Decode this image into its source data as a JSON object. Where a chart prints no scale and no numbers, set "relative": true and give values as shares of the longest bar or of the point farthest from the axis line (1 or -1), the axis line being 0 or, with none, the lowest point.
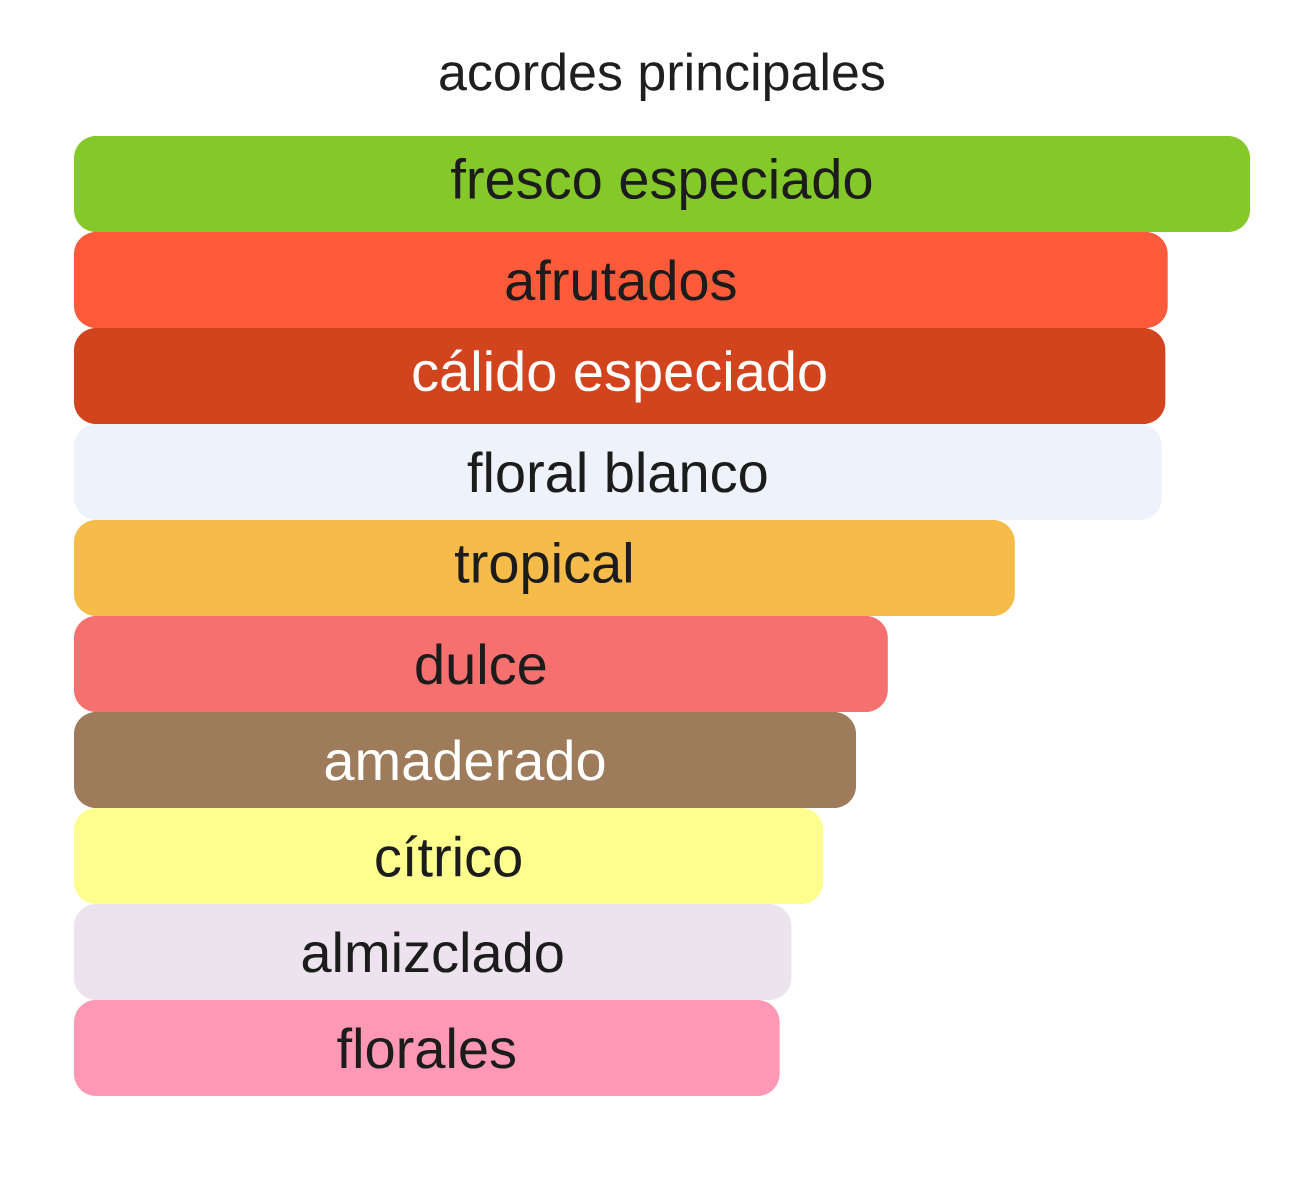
{
  "chart_data": {
    "type": "bar",
    "orientation": "horizontal",
    "relative": true,
    "title": "acordes principales",
    "categories": [
      "fresco especiado",
      "afrutados",
      "cálido especiado",
      "floral blanco",
      "tropical",
      "dulce",
      "amaderado",
      "cítrico",
      "almizclado",
      "florales"
    ],
    "values": [
      1,
      0.93,
      0.928,
      0.925,
      0.8,
      0.692,
      0.665,
      0.637,
      0.61,
      0.6
    ],
    "colors": [
      "#84c82a",
      "#ff5a3a",
      "#d2441e",
      "#edf2fb",
      "#f6bc4a",
      "#f5706f",
      "#9e7b5a",
      "#fdfe8e",
      "#ede3ef",
      "#fe98b5"
    ]
  }
}
